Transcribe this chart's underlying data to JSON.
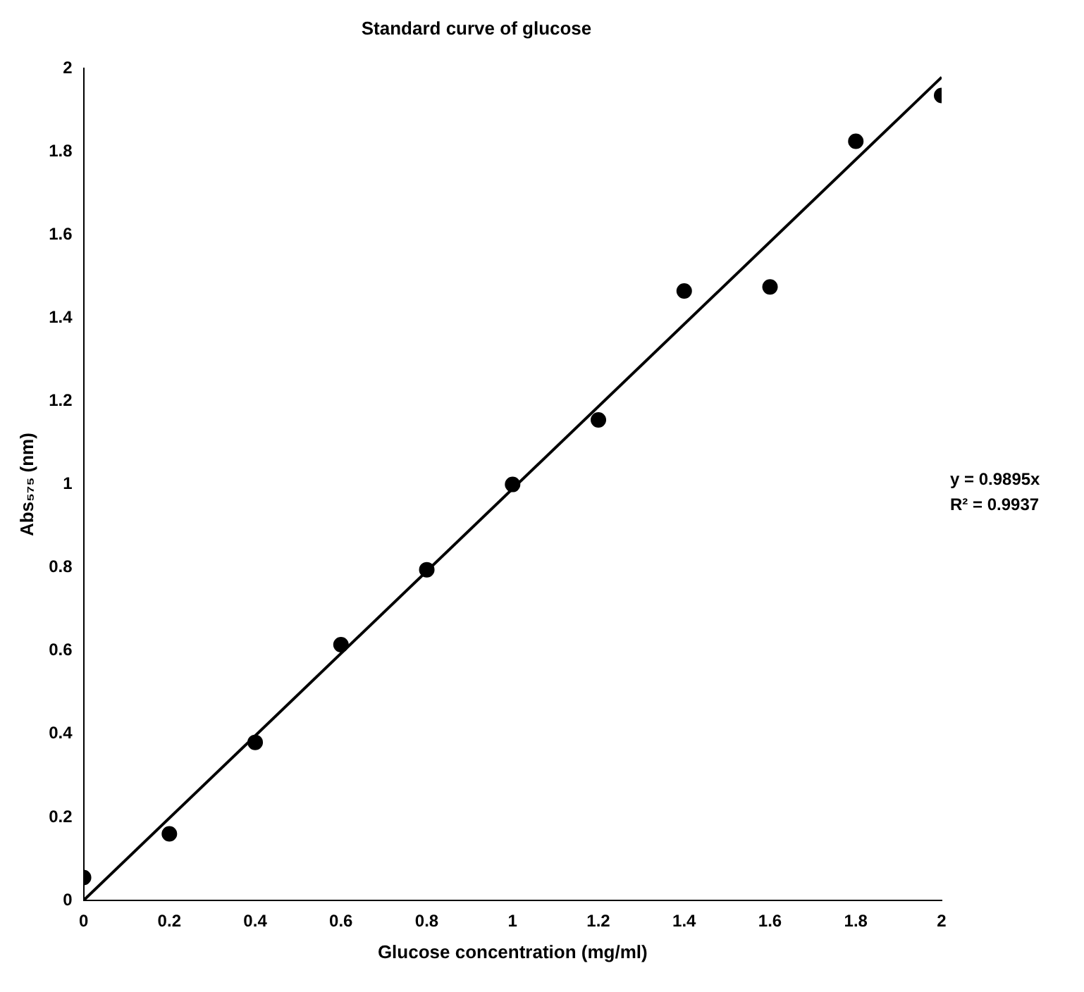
{
  "chart_data": {
    "type": "scatter",
    "title": "Standard curve of glucose",
    "xlabel": "Glucose concentration (mg/ml)",
    "ylabel": "Abs₅₇₅ (nm)",
    "x": [
      0,
      0.2,
      0.4,
      0.6,
      0.8,
      1,
      1.2,
      1.4,
      1.6,
      1.8,
      2
    ],
    "series": [
      {
        "type": "scatter",
        "color": "#000000",
        "marker": "circle",
        "values": [
          0.055,
          0.16,
          0.38,
          0.615,
          0.795,
          1.0,
          1.155,
          1.465,
          1.475,
          1.825,
          1.935
        ]
      },
      {
        "type": "line",
        "color": "#000000",
        "marker": "none",
        "line_style": "solid",
        "x": [
          0,
          2
        ],
        "values": [
          0,
          1.979
        ]
      }
    ],
    "xlim": [
      0,
      2
    ],
    "ylim": [
      0,
      2
    ],
    "xticks": [
      0,
      0.2,
      0.4,
      0.6,
      0.8,
      1,
      1.2,
      1.4,
      1.6,
      1.8,
      2
    ],
    "yticks": [
      0,
      0.2,
      0.4,
      0.6,
      0.8,
      1,
      1.2,
      1.4,
      1.6,
      1.8,
      2
    ],
    "grid": false,
    "legend": false,
    "annotations": [
      "y = 0.9895x",
      "R² = 0.9937"
    ]
  }
}
